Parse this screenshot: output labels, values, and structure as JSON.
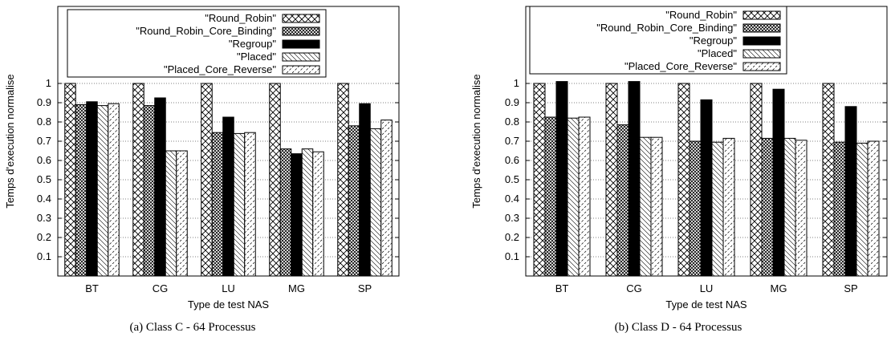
{
  "chart_data": [
    {
      "type": "bar",
      "caption": "(a) Class C - 64 Processus",
      "xlabel": "Type de test NAS",
      "ylabel": "Temps d'execution normalise",
      "ylim": [
        0,
        1.4
      ],
      "yticks": [
        "0.1",
        "0.2",
        "0.3",
        "0.4",
        "0.5",
        "0.6",
        "0.7",
        "0.8",
        "0.9",
        "1"
      ],
      "grid": true,
      "legend_position": "top",
      "categories": [
        "BT",
        "CG",
        "LU",
        "MG",
        "SP"
      ],
      "series": [
        {
          "name": "\"Round_Robin\"",
          "values": [
            1.0,
            1.0,
            1.0,
            1.0,
            1.0
          ]
        },
        {
          "name": "\"Round_Robin_Core_Binding\"",
          "values": [
            0.89,
            0.885,
            0.745,
            0.66,
            0.78
          ]
        },
        {
          "name": "\"Regroup\"",
          "values": [
            0.905,
            0.925,
            0.825,
            0.635,
            0.895
          ]
        },
        {
          "name": "\"Placed\"",
          "values": [
            0.885,
            0.65,
            0.74,
            0.66,
            0.765
          ]
        },
        {
          "name": "\"Placed_Core_Reverse\"",
          "values": [
            0.895,
            0.65,
            0.745,
            0.645,
            0.81
          ]
        }
      ]
    },
    {
      "type": "bar",
      "caption": "(b) Class D - 64 Processus",
      "xlabel": "Type de test NAS",
      "ylabel": "Temps d'execution normalise",
      "ylim": [
        0,
        1.4
      ],
      "yticks": [
        "0.1",
        "0.2",
        "0.3",
        "0.4",
        "0.5",
        "0.6",
        "0.7",
        "0.8",
        "0.9",
        "1"
      ],
      "grid": true,
      "legend_position": "top",
      "categories": [
        "BT",
        "CG",
        "LU",
        "MG",
        "SP"
      ],
      "series": [
        {
          "name": "\"Round_Robin\"",
          "values": [
            1.0,
            1.0,
            1.0,
            1.0,
            1.0
          ]
        },
        {
          "name": "\"Round_Robin_Core_Binding\"",
          "values": [
            0.825,
            0.785,
            0.7,
            0.715,
            0.695
          ]
        },
        {
          "name": "\"Regroup\"",
          "values": [
            1.01,
            1.01,
            0.915,
            0.97,
            0.88
          ]
        },
        {
          "name": "\"Placed\"",
          "values": [
            0.82,
            0.72,
            0.695,
            0.715,
            0.69
          ]
        },
        {
          "name": "\"Placed_Core_Reverse\"",
          "values": [
            0.825,
            0.72,
            0.715,
            0.705,
            0.7
          ]
        }
      ]
    }
  ],
  "patterns": [
    "crosshatch-dense",
    "crosshatch-fine",
    "solid-black",
    "diagonal-light",
    "diagonal-dash"
  ]
}
